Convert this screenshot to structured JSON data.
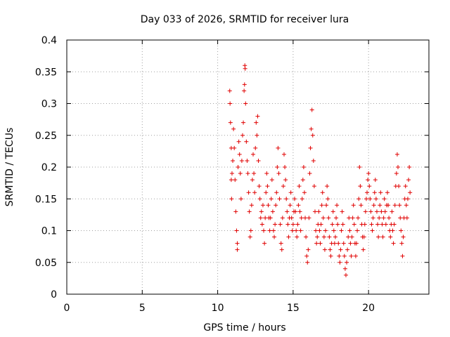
{
  "chart_data": {
    "type": "scatter",
    "title": "Day 033 of 2026, SRMTID for receiver lura",
    "xlabel": "GPS time / hours",
    "ylabel": "SRMTID / TECUs",
    "xlim": [
      0,
      24
    ],
    "ylim": [
      0,
      0.4
    ],
    "xticks": [
      0,
      5,
      10,
      15,
      20
    ],
    "xtick_labels": [
      "0",
      "5",
      "10",
      "15",
      "20"
    ],
    "yticks": [
      0,
      0.05,
      0.1,
      0.15,
      0.2,
      0.25,
      0.3,
      0.35,
      0.4
    ],
    "ytick_labels": [
      "0",
      "0.05",
      "0.1",
      "0.15",
      "0.2",
      "0.25",
      "0.3",
      "0.35",
      "0.4"
    ],
    "grid": true,
    "marker": "+",
    "series_color": "#e00000",
    "series": [
      {
        "name": "SRMTID",
        "points": [
          [
            10.8,
            0.32
          ],
          [
            10.82,
            0.3
          ],
          [
            10.85,
            0.27
          ],
          [
            10.9,
            0.23
          ],
          [
            10.95,
            0.19
          ],
          [
            10.9,
            0.18
          ],
          [
            10.92,
            0.15
          ],
          [
            11.0,
            0.21
          ],
          [
            11.05,
            0.26
          ],
          [
            11.1,
            0.23
          ],
          [
            11.15,
            0.18
          ],
          [
            11.2,
            0.13
          ],
          [
            11.25,
            0.1
          ],
          [
            11.3,
            0.07
          ],
          [
            11.3,
            0.08
          ],
          [
            11.35,
            0.2
          ],
          [
            11.4,
            0.24
          ],
          [
            11.45,
            0.22
          ],
          [
            11.5,
            0.19
          ],
          [
            11.55,
            0.15
          ],
          [
            11.6,
            0.21
          ],
          [
            11.65,
            0.25
          ],
          [
            11.7,
            0.27
          ],
          [
            11.75,
            0.32
          ],
          [
            11.78,
            0.33
          ],
          [
            11.8,
            0.36
          ],
          [
            11.82,
            0.355
          ],
          [
            11.85,
            0.3
          ],
          [
            11.9,
            0.24
          ],
          [
            11.95,
            0.21
          ],
          [
            12.0,
            0.19
          ],
          [
            12.05,
            0.16
          ],
          [
            12.1,
            0.13
          ],
          [
            12.15,
            0.09
          ],
          [
            12.2,
            0.1
          ],
          [
            12.25,
            0.14
          ],
          [
            12.3,
            0.18
          ],
          [
            12.35,
            0.22
          ],
          [
            12.4,
            0.19
          ],
          [
            12.45,
            0.16
          ],
          [
            12.5,
            0.23
          ],
          [
            12.55,
            0.27
          ],
          [
            12.6,
            0.25
          ],
          [
            12.65,
            0.28
          ],
          [
            12.7,
            0.21
          ],
          [
            12.75,
            0.17
          ],
          [
            12.8,
            0.15
          ],
          [
            12.85,
            0.12
          ],
          [
            12.9,
            0.13
          ],
          [
            12.95,
            0.11
          ],
          [
            13.0,
            0.14
          ],
          [
            13.05,
            0.1
          ],
          [
            13.1,
            0.08
          ],
          [
            13.15,
            0.12
          ],
          [
            13.2,
            0.16
          ],
          [
            13.25,
            0.19
          ],
          [
            13.3,
            0.17
          ],
          [
            13.35,
            0.14
          ],
          [
            13.4,
            0.12
          ],
          [
            13.45,
            0.1
          ],
          [
            13.5,
            0.12
          ],
          [
            13.55,
            0.15
          ],
          [
            13.6,
            0.18
          ],
          [
            13.65,
            0.13
          ],
          [
            13.7,
            0.1
          ],
          [
            13.75,
            0.09
          ],
          [
            13.8,
            0.11
          ],
          [
            13.85,
            0.14
          ],
          [
            13.9,
            0.16
          ],
          [
            13.95,
            0.2
          ],
          [
            14.0,
            0.23
          ],
          [
            14.05,
            0.19
          ],
          [
            14.1,
            0.15
          ],
          [
            14.15,
            0.11
          ],
          [
            14.2,
            0.08
          ],
          [
            14.25,
            0.07
          ],
          [
            14.3,
            0.12
          ],
          [
            14.35,
            0.17
          ],
          [
            14.4,
            0.22
          ],
          [
            14.45,
            0.2
          ],
          [
            14.5,
            0.18
          ],
          [
            14.55,
            0.15
          ],
          [
            14.6,
            0.13
          ],
          [
            14.65,
            0.11
          ],
          [
            14.7,
            0.09
          ],
          [
            14.75,
            0.12
          ],
          [
            14.8,
            0.14
          ],
          [
            14.85,
            0.16
          ],
          [
            14.9,
            0.12
          ],
          [
            14.95,
            0.1
          ],
          [
            15.0,
            0.11
          ],
          [
            15.05,
            0.13
          ],
          [
            15.1,
            0.15
          ],
          [
            15.15,
            0.13
          ],
          [
            15.2,
            0.1
          ],
          [
            15.25,
            0.09
          ],
          [
            15.3,
            0.11
          ],
          [
            15.35,
            0.14
          ],
          [
            15.4,
            0.17
          ],
          [
            15.45,
            0.13
          ],
          [
            15.5,
            0.1
          ],
          [
            15.55,
            0.12
          ],
          [
            15.6,
            0.15
          ],
          [
            15.65,
            0.18
          ],
          [
            15.7,
            0.2
          ],
          [
            15.75,
            0.16
          ],
          [
            15.8,
            0.12
          ],
          [
            15.85,
            0.09
          ],
          [
            15.9,
            0.06
          ],
          [
            15.95,
            0.05
          ],
          [
            16.0,
            0.07
          ],
          [
            16.05,
            0.12
          ],
          [
            16.1,
            0.19
          ],
          [
            16.15,
            0.23
          ],
          [
            16.2,
            0.26
          ],
          [
            16.25,
            0.29
          ],
          [
            16.3,
            0.25
          ],
          [
            16.35,
            0.21
          ],
          [
            16.4,
            0.17
          ],
          [
            16.45,
            0.13
          ],
          [
            16.5,
            0.1
          ],
          [
            16.55,
            0.08
          ],
          [
            16.6,
            0.09
          ],
          [
            16.65,
            0.11
          ],
          [
            16.7,
            0.13
          ],
          [
            16.75,
            0.1
          ],
          [
            16.8,
            0.08
          ],
          [
            16.85,
            0.11
          ],
          [
            16.9,
            0.14
          ],
          [
            16.95,
            0.16
          ],
          [
            17.0,
            0.12
          ],
          [
            17.05,
            0.09
          ],
          [
            17.1,
            0.07
          ],
          [
            17.15,
            0.1
          ],
          [
            17.2,
            0.14
          ],
          [
            17.25,
            0.17
          ],
          [
            17.3,
            0.15
          ],
          [
            17.35,
            0.12
          ],
          [
            17.4,
            0.09
          ],
          [
            17.45,
            0.07
          ],
          [
            17.5,
            0.06
          ],
          [
            17.55,
            0.08
          ],
          [
            17.6,
            0.11
          ],
          [
            17.65,
            0.13
          ],
          [
            17.7,
            0.1
          ],
          [
            17.75,
            0.08
          ],
          [
            17.8,
            0.09
          ],
          [
            17.85,
            0.12
          ],
          [
            17.9,
            0.14
          ],
          [
            17.95,
            0.11
          ],
          [
            18.0,
            0.08
          ],
          [
            18.05,
            0.06
          ],
          [
            18.1,
            0.05
          ],
          [
            18.15,
            0.07
          ],
          [
            18.2,
            0.1
          ],
          [
            18.25,
            0.13
          ],
          [
            18.3,
            0.11
          ],
          [
            18.35,
            0.08
          ],
          [
            18.4,
            0.06
          ],
          [
            18.45,
            0.04
          ],
          [
            18.5,
            0.03
          ],
          [
            18.55,
            0.05
          ],
          [
            18.6,
            0.07
          ],
          [
            18.65,
            0.09
          ],
          [
            18.7,
            0.12
          ],
          [
            18.75,
            0.1
          ],
          [
            18.8,
            0.08
          ],
          [
            18.85,
            0.06
          ],
          [
            18.9,
            0.09
          ],
          [
            18.95,
            0.12
          ],
          [
            19.0,
            0.14
          ],
          [
            19.05,
            0.11
          ],
          [
            19.1,
            0.08
          ],
          [
            19.15,
            0.06
          ],
          [
            19.2,
            0.08
          ],
          [
            19.25,
            0.1
          ],
          [
            19.3,
            0.12
          ],
          [
            19.35,
            0.15
          ],
          [
            19.4,
            0.2
          ],
          [
            19.45,
            0.17
          ],
          [
            19.5,
            0.14
          ],
          [
            19.55,
            0.11
          ],
          [
            19.6,
            0.09
          ],
          [
            19.65,
            0.07
          ],
          [
            19.7,
            0.09
          ],
          [
            19.75,
            0.11
          ],
          [
            19.8,
            0.13
          ],
          [
            19.85,
            0.15
          ],
          [
            19.9,
            0.16
          ],
          [
            19.95,
            0.18
          ],
          [
            20.0,
            0.19
          ],
          [
            20.05,
            0.17
          ],
          [
            20.1,
            0.15
          ],
          [
            20.15,
            0.13
          ],
          [
            20.2,
            0.11
          ],
          [
            20.25,
            0.1
          ],
          [
            20.3,
            0.12
          ],
          [
            20.35,
            0.14
          ],
          [
            20.4,
            0.16
          ],
          [
            20.45,
            0.18
          ],
          [
            20.5,
            0.15
          ],
          [
            20.55,
            0.13
          ],
          [
            20.6,
            0.11
          ],
          [
            20.65,
            0.09
          ],
          [
            20.7,
            0.12
          ],
          [
            20.75,
            0.14
          ],
          [
            20.8,
            0.16
          ],
          [
            20.85,
            0.13
          ],
          [
            20.9,
            0.11
          ],
          [
            20.95,
            0.09
          ],
          [
            21.0,
            0.12
          ],
          [
            21.05,
            0.15
          ],
          [
            21.1,
            0.13
          ],
          [
            21.15,
            0.11
          ],
          [
            21.2,
            0.14
          ],
          [
            21.25,
            0.16
          ],
          [
            21.3,
            0.14
          ],
          [
            21.35,
            0.12
          ],
          [
            21.4,
            0.1
          ],
          [
            21.45,
            0.09
          ],
          [
            21.5,
            0.11
          ],
          [
            21.55,
            0.13
          ],
          [
            21.6,
            0.1
          ],
          [
            21.65,
            0.08
          ],
          [
            21.7,
            0.11
          ],
          [
            21.75,
            0.14
          ],
          [
            21.8,
            0.17
          ],
          [
            21.85,
            0.19
          ],
          [
            21.9,
            0.22
          ],
          [
            21.95,
            0.2
          ],
          [
            22.0,
            0.17
          ],
          [
            22.05,
            0.14
          ],
          [
            22.1,
            0.12
          ],
          [
            22.15,
            0.1
          ],
          [
            22.2,
            0.08
          ],
          [
            22.25,
            0.06
          ],
          [
            22.3,
            0.09
          ],
          [
            22.35,
            0.12
          ],
          [
            22.4,
            0.15
          ],
          [
            22.45,
            0.17
          ],
          [
            22.5,
            0.14
          ],
          [
            22.55,
            0.12
          ],
          [
            22.6,
            0.15
          ],
          [
            22.65,
            0.18
          ],
          [
            22.7,
            0.2
          ],
          [
            22.75,
            0.16
          ]
        ]
      }
    ]
  }
}
